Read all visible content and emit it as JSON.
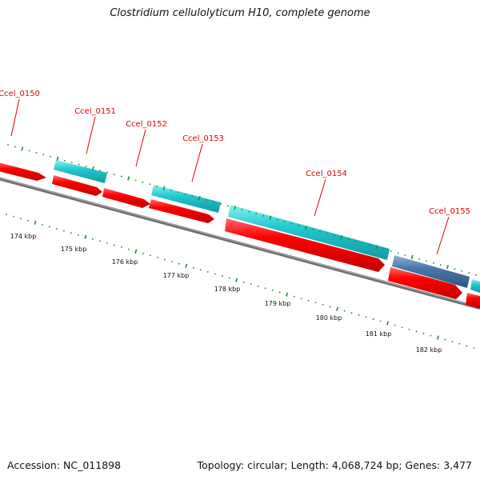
{
  "title": "Clostridium cellulolyticum H10, complete genome",
  "accession": "Accession: NC_011898",
  "summary": "Topology: circular; Length: 4,068,724 bp; Genes: 3,477",
  "colors": {
    "backbone": "#8a8a8a",
    "cds_forward": "#ff0000",
    "cds_reverse": "#22c8d0",
    "cds_reverse_alt": "#4a78a8",
    "tick": "#1f8f1f",
    "gene_label": "#e00000"
  },
  "gene_labels": [
    {
      "id": "g150",
      "name": "Ccel_0150"
    },
    {
      "id": "g151",
      "name": "Ccel_0151"
    },
    {
      "id": "g152",
      "name": "Ccel_0152"
    },
    {
      "id": "g153",
      "name": "Ccel_0153"
    },
    {
      "id": "g154",
      "name": "Ccel_0154"
    },
    {
      "id": "g155",
      "name": "Ccel_0155"
    }
  ],
  "scale_labels": [
    "174 kbp",
    "175 kbp",
    "176 kbp",
    "177 kbp",
    "178 kbp",
    "179 kbp",
    "180 kbp",
    "181 kbp",
    "182 kbp"
  ]
}
